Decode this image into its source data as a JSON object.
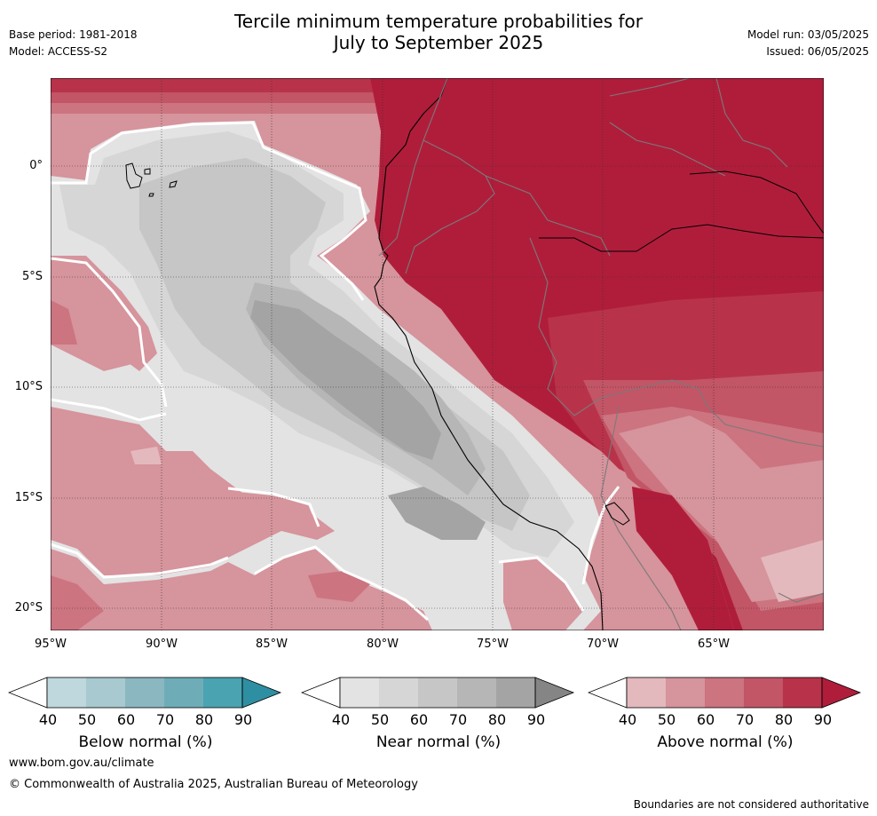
{
  "header": {
    "title_line1": "Tercile minimum temperature probabilities for",
    "title_line2": "July to September 2025",
    "base_period": "Base period: 1981-2018",
    "model": "Model: ACCESS-S2",
    "model_run": "Model run: 03/05/2025",
    "issued": "Issued: 06/05/2025"
  },
  "map": {
    "lat_labels": [
      "0°",
      "5°S",
      "10°S",
      "15°S",
      "20°S"
    ],
    "lon_labels": [
      "95°W",
      "90°W",
      "85°W",
      "80°W",
      "75°W",
      "70°W",
      "65°W"
    ]
  },
  "legends": [
    {
      "name": "Below normal (%)",
      "ticks": [
        "40",
        "50",
        "60",
        "70",
        "80",
        "90"
      ],
      "colors": [
        "#bed8dd",
        "#a7c9cf",
        "#8bb7c1",
        "#6eadb8",
        "#4aa3b1",
        "#2f8fa2"
      ]
    },
    {
      "name": "Near normal (%)",
      "ticks": [
        "40",
        "50",
        "60",
        "70",
        "80",
        "90"
      ],
      "colors": [
        "#e3e3e3",
        "#d6d6d6",
        "#c6c6c6",
        "#b6b6b6",
        "#a4a4a4",
        "#858585"
      ]
    },
    {
      "name": "Above normal (%)",
      "ticks": [
        "40",
        "50",
        "60",
        "70",
        "80",
        "90"
      ],
      "colors": [
        "#e3b9bd",
        "#d6949c",
        "#cc7480",
        "#c25566",
        "#b8334a",
        "#b01d3b"
      ]
    }
  ],
  "footer": {
    "url": "www.bom.gov.au/climate",
    "copyright": "© Commonwealth of Australia 2025, Australian Bureau of Meteorology",
    "disclaimer": "Boundaries are not considered authoritative"
  }
}
